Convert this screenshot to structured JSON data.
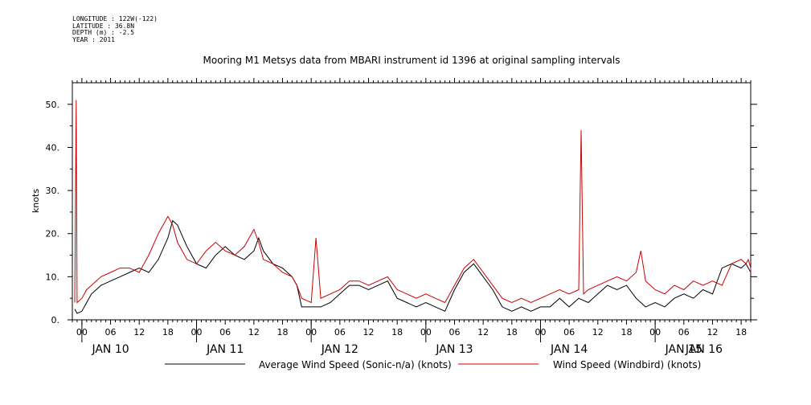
{
  "metadata": {
    "longitude": "LONGITUDE : 122W(-122)",
    "latitude": "LATITUDE : 36.8N",
    "depth": "DEPTH (m) : -2.5",
    "year": "YEAR : 2011"
  },
  "chart_data": {
    "type": "line",
    "title": "Mooring M1 Metsys data from MBARI instrument id 1396 at original sampling intervals",
    "ylabel": "knots",
    "xlabel": "",
    "ylim": [
      0,
      55
    ],
    "yticks": [
      0,
      10,
      20,
      30,
      40,
      50
    ],
    "ytick_labels": [
      "0.",
      "10.",
      "20.",
      "30.",
      "40.",
      "50."
    ],
    "xlim": [
      -2,
      140
    ],
    "x_units": "hours since JAN 10 00:00 2011",
    "hour_ticks": [
      0,
      6,
      12,
      18,
      24,
      30,
      36,
      42,
      48,
      54,
      60,
      66,
      72,
      78,
      84,
      90,
      96,
      102,
      108,
      114,
      120,
      126,
      132,
      138
    ],
    "hour_tick_labels": [
      "00",
      "06",
      "12",
      "18",
      "00",
      "06",
      "12",
      "18",
      "00",
      "06",
      "12",
      "18",
      "00",
      "06",
      "12",
      "18",
      "00",
      "06",
      "12",
      "18",
      "00",
      "06",
      "12",
      "18"
    ],
    "day_labels": [
      {
        "x": 6,
        "label": "JAN 10"
      },
      {
        "x": 30,
        "label": "JAN 11"
      },
      {
        "x": 54,
        "label": "JAN 12"
      },
      {
        "x": 78,
        "label": "JAN 13"
      },
      {
        "x": 102,
        "label": "JAN 14"
      },
      {
        "x": 126,
        "label": "JAN 15"
      },
      {
        "x": 150,
        "label": "JAN 16"
      }
    ],
    "series": [
      {
        "name": "Average Wind Speed (Sonic-n/a) (knots)",
        "color": "#000000",
        "x": [
          -1.5,
          -1,
          0,
          1,
          2,
          3,
          4,
          6,
          8,
          10,
          12,
          14,
          16,
          18,
          19,
          20,
          22,
          24,
          26,
          28,
          30,
          32,
          34,
          36,
          37,
          38,
          40,
          42,
          44,
          45,
          46,
          48,
          50,
          52,
          54,
          56,
          58,
          60,
          62,
          64,
          66,
          68,
          70,
          72,
          74,
          76,
          78,
          80,
          82,
          84,
          86,
          88,
          90,
          92,
          94,
          96,
          98,
          100,
          102,
          104,
          106,
          108,
          110,
          112,
          114,
          116,
          118,
          120,
          122,
          124,
          126,
          128,
          130,
          132,
          134,
          136,
          138,
          139,
          140
        ],
        "y": [
          2.5,
          1.5,
          2,
          4,
          6,
          7,
          8,
          9,
          10,
          11,
          12,
          11,
          14,
          19,
          23,
          22,
          17,
          13,
          12,
          15,
          17,
          15,
          14,
          16,
          19,
          16,
          13,
          12,
          10,
          8,
          3,
          3,
          3,
          4,
          6,
          8,
          8,
          7,
          8,
          9,
          5,
          4,
          3,
          4,
          3,
          2,
          7,
          11,
          13,
          10,
          7,
          3,
          2,
          3,
          2,
          3,
          3,
          5,
          3,
          5,
          4,
          6,
          8,
          7,
          8,
          5,
          3,
          4,
          3,
          5,
          6,
          5,
          7,
          6,
          12,
          13,
          12,
          13,
          11
        ]
      },
      {
        "name": "Wind Speed (Windbird) (knots)",
        "color": "#cc0000",
        "x": [
          -1.5,
          -1.2,
          -1,
          0,
          1,
          2,
          3,
          4,
          6,
          8,
          10,
          12,
          14,
          16,
          18,
          19,
          20,
          22,
          24,
          26,
          28,
          30,
          32,
          34,
          36,
          37,
          38,
          40,
          42,
          44,
          45,
          46,
          48,
          49,
          50,
          52,
          54,
          56,
          58,
          60,
          62,
          64,
          66,
          68,
          70,
          72,
          74,
          76,
          78,
          80,
          82,
          84,
          86,
          88,
          90,
          92,
          94,
          96,
          98,
          100,
          102,
          104,
          104.5,
          105,
          106,
          108,
          110,
          112,
          114,
          116,
          117,
          118,
          120,
          122,
          124,
          126,
          128,
          130,
          132,
          134,
          136,
          138,
          139,
          139.5,
          140,
          141
        ],
        "y": [
          4,
          51,
          4,
          5,
          7,
          8,
          9,
          10,
          11,
          12,
          12,
          11,
          15,
          20,
          24,
          22,
          18,
          14,
          13,
          16,
          18,
          16,
          15,
          17,
          21,
          18,
          14,
          13,
          11,
          10,
          8,
          5,
          4,
          19,
          5,
          6,
          7,
          9,
          9,
          8,
          9,
          10,
          7,
          6,
          5,
          6,
          5,
          4,
          8,
          12,
          14,
          11,
          8,
          5,
          4,
          5,
          4,
          5,
          6,
          7,
          6,
          7,
          44,
          6,
          7,
          8,
          9,
          10,
          9,
          11,
          16,
          9,
          7,
          6,
          8,
          7,
          9,
          8,
          9,
          8,
          13,
          14,
          13,
          14,
          12,
          11
        ]
      }
    ],
    "legend": {
      "position": "bottom"
    }
  }
}
